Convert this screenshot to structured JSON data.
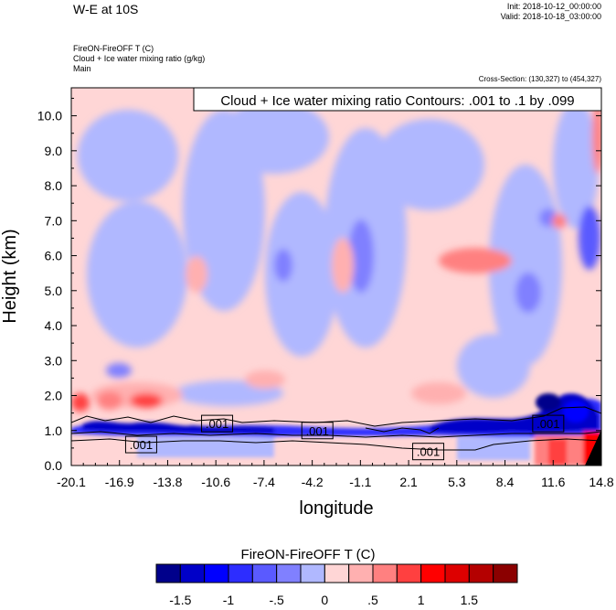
{
  "header": {
    "title": "W-E at 10S",
    "init": "Init: 2018-10-12_00:00:00",
    "valid": "Valid: 2018-10-18_03:00:00",
    "field1": "FireON-FireOFF T   (C)",
    "field2": "Cloud + Ice water mixing ratio   (g/kg)",
    "group": "Main",
    "cross_section": "Cross-Section: (130,327) to (454,327)"
  },
  "chart_data": {
    "type": "heatmap",
    "title": "W-E at 10S",
    "contour_info": "Cloud + Ice water mixing ratio Contours: .001 to .1 by .099",
    "xlabel": "longitude",
    "ylabel": "Height (km)",
    "xlim": [
      -20.1,
      14.8
    ],
    "ylim": [
      0.0,
      10.8
    ],
    "x_ticks": [
      "-20.1",
      "-16.9",
      "-13.8",
      "-10.6",
      "-7.4",
      "-4.2",
      "-1.1",
      "2.1",
      "5.3",
      "8.4",
      "11.6",
      "14.8"
    ],
    "y_ticks": [
      "0.0",
      "1.0",
      "2.0",
      "3.0",
      "4.0",
      "5.0",
      "6.0",
      "7.0",
      "8.0",
      "9.0",
      "10.0"
    ],
    "contour_labels": [
      {
        "text": ".001",
        "lon": -10.5,
        "height": 1.2
      },
      {
        "text": ".001",
        "lon": -3.9,
        "height": 1.0
      },
      {
        "text": ".001",
        "lon": -15.5,
        "height": 0.6
      },
      {
        "text": ".001",
        "lon": 3.4,
        "height": 0.4
      },
      {
        "text": ".001",
        "lon": 11.3,
        "height": 1.2
      }
    ],
    "colorbar": {
      "title": "FireON-FireOFF T  (C)",
      "colors": [
        "#00008b",
        "#0000c8",
        "#0000ff",
        "#2d2dff",
        "#5a5aff",
        "#8080ff",
        "#b0b8ff",
        "#ffd6d6",
        "#ffb0b0",
        "#ff8080",
        "#ff4040",
        "#ff0000",
        "#dd0000",
        "#b40000",
        "#8b0000"
      ],
      "tick_labels": [
        "-1.5",
        "-1",
        "-.5",
        "0",
        ".5",
        "1",
        "1.5"
      ]
    }
  }
}
